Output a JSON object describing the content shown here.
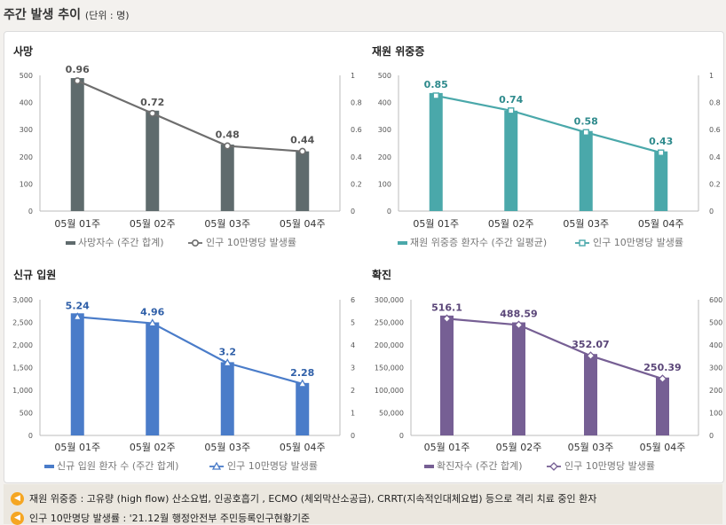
{
  "header": {
    "title": "주간 발생 추이",
    "unit": "(단위 : 명)"
  },
  "chart_data": [
    {
      "type": "bar",
      "title": "사망",
      "categories": [
        "05월 01주",
        "05월 02주",
        "05월 03주",
        "05월 04주"
      ],
      "series": [
        {
          "name": "사망자수 (주간 합계)",
          "type": "bar",
          "axis": "left",
          "values": [
            490,
            370,
            245,
            220
          ]
        },
        {
          "name": "인구 10만명당 발생률",
          "type": "line",
          "axis": "right",
          "marker": "circle",
          "values": [
            0.96,
            0.72,
            0.48,
            0.44
          ]
        }
      ],
      "data_labels": [
        "0.96",
        "0.72",
        "0.48",
        "0.44"
      ],
      "ylim": [
        0,
        500
      ],
      "yticks": [
        0,
        100,
        200,
        300,
        400,
        500
      ],
      "ytick_labels": [
        "0",
        "100",
        "200",
        "300",
        "400",
        "500"
      ],
      "y2lim": [
        0,
        1
      ],
      "y2ticks": [
        0,
        0.2,
        0.4,
        0.6,
        0.8,
        1
      ],
      "y2tick_labels": [
        "0",
        "0.2",
        "0.4",
        "0.6",
        "0.8",
        "1"
      ],
      "colors": {
        "bar": "#5f6b6d",
        "line": "#6e6e6e",
        "label": "#555555"
      }
    },
    {
      "type": "bar",
      "title": "재원 위중증",
      "categories": [
        "05월 01주",
        "05월 02주",
        "05월 03주",
        "05월 04주"
      ],
      "series": [
        {
          "name": "재원 위중증 환자수 (주간 일평균)",
          "type": "bar",
          "axis": "left",
          "values": [
            435,
            370,
            295,
            220
          ]
        },
        {
          "name": "인구 10만명당 발생률",
          "type": "line",
          "axis": "right",
          "marker": "square",
          "values": [
            0.85,
            0.74,
            0.58,
            0.43
          ]
        }
      ],
      "data_labels": [
        "0.85",
        "0.74",
        "0.58",
        "0.43"
      ],
      "ylim": [
        0,
        500
      ],
      "yticks": [
        0,
        100,
        200,
        300,
        400,
        500
      ],
      "ytick_labels": [
        "0",
        "100",
        "200",
        "300",
        "400",
        "500"
      ],
      "y2lim": [
        0,
        1
      ],
      "y2ticks": [
        0,
        0.2,
        0.4,
        0.6,
        0.8,
        1
      ],
      "y2tick_labels": [
        "0",
        "0.2",
        "0.4",
        "0.6",
        "0.8",
        "1"
      ],
      "colors": {
        "bar": "#4aa8aa",
        "line": "#4aa8aa",
        "label": "#2e8a8c"
      }
    },
    {
      "type": "bar",
      "title": "신규 입원",
      "categories": [
        "05월 01주",
        "05월 02주",
        "05월 03주",
        "05월 04주"
      ],
      "series": [
        {
          "name": "신규 입원 환자 수 (주간 합계)",
          "type": "bar",
          "axis": "left",
          "values": [
            2700,
            2500,
            1620,
            1160
          ]
        },
        {
          "name": "인구 10만명당 발생률",
          "type": "line",
          "axis": "right",
          "marker": "triangle",
          "values": [
            5.24,
            4.96,
            3.2,
            2.28
          ]
        }
      ],
      "data_labels": [
        "5.24",
        "4.96",
        "3.2",
        "2.28"
      ],
      "ylim": [
        0,
        3000
      ],
      "yticks": [
        0,
        500,
        1000,
        1500,
        2000,
        2500,
        3000
      ],
      "ytick_labels": [
        "0",
        "500",
        "1,000",
        "1,500",
        "2,000",
        "2,500",
        "3,000"
      ],
      "y2lim": [
        0,
        6
      ],
      "y2ticks": [
        0,
        1,
        2,
        3,
        4,
        5,
        6
      ],
      "y2tick_labels": [
        "0",
        "1",
        "2",
        "3",
        "4",
        "5",
        "6"
      ],
      "colors": {
        "bar": "#4a7cc9",
        "line": "#4a7cc9",
        "label": "#2f5fa8"
      }
    },
    {
      "type": "bar",
      "title": "확진",
      "categories": [
        "05월 01주",
        "05월 02주",
        "05월 03주",
        "05월 04주"
      ],
      "series": [
        {
          "name": "확진자수 (주간 합계)",
          "type": "bar",
          "axis": "left",
          "values": [
            265000,
            250000,
            180000,
            128000
          ]
        },
        {
          "name": "인구 10만명당 발생률",
          "type": "line",
          "axis": "right",
          "marker": "diamond",
          "values": [
            516.1,
            488.59,
            352.07,
            250.39
          ]
        }
      ],
      "data_labels": [
        "516.1",
        "488.59",
        "352.07",
        "250.39"
      ],
      "ylim": [
        0,
        300000
      ],
      "yticks": [
        0,
        50000,
        100000,
        150000,
        200000,
        250000,
        300000
      ],
      "ytick_labels": [
        "0",
        "50,000",
        "100,000",
        "150,000",
        "200,000",
        "250,000",
        "300,000"
      ],
      "y2lim": [
        0,
        600
      ],
      "y2ticks": [
        0,
        100,
        200,
        300,
        400,
        500,
        600
      ],
      "y2tick_labels": [
        "0",
        "100",
        "200",
        "300",
        "400",
        "500",
        "600"
      ],
      "colors": {
        "bar": "#765f94",
        "line": "#765f94",
        "label": "#5a4578"
      }
    }
  ],
  "notes": [
    {
      "icon": "speaker-icon",
      "text": "재원 위중증 : 고유량 (high flow) 산소요법, 인공호흡기 , ECMO (체외막산소공급), CRRT(지속적인대체요법) 등으로 격리 치료 중인 환자"
    },
    {
      "icon": "speaker-icon",
      "text": "인구 10만명당 발생률 : '21.12월 행정안전부 주민등록인구현황기준"
    }
  ]
}
